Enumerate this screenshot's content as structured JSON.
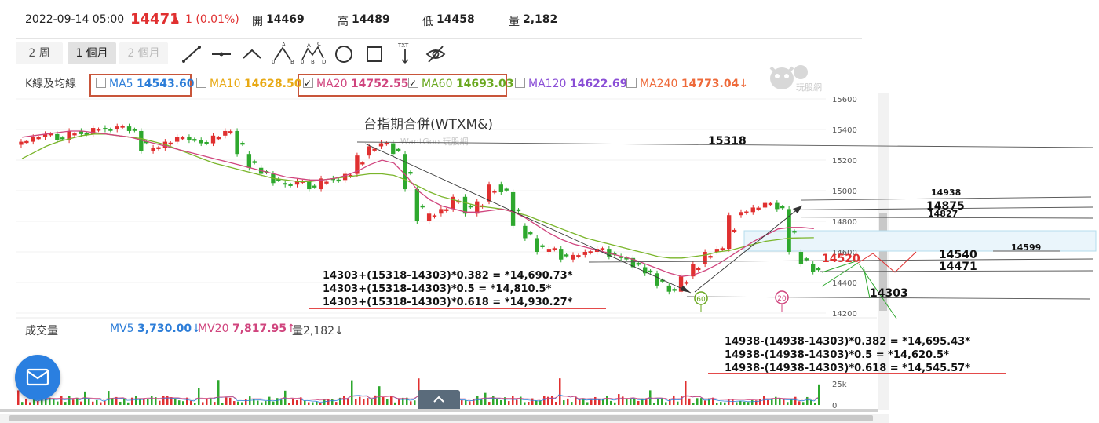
{
  "header": {
    "datetime": "2022-09-14 05:00",
    "price": "14471",
    "change": "1 (0.01%)",
    "open_label": "開",
    "open": "14469",
    "high_label": "高",
    "high": "14489",
    "low_label": "低",
    "low": "14458",
    "vol_label": "量",
    "vol": "2,182"
  },
  "periods": [
    {
      "label": "2 周",
      "state": "normal"
    },
    {
      "label": "1 個月",
      "state": "active"
    },
    {
      "label": "2 個月",
      "state": "disabled"
    }
  ],
  "tools": [
    "line-tool-icon",
    "horizontal-line-icon",
    "angle-line-icon",
    "abc-pattern-icon",
    "abcd-pattern-icon",
    "circle-tool-icon",
    "rectangle-tool-icon",
    "text-tool-icon",
    "hide-eye-icon"
  ],
  "tool_labels": {
    "abc": [
      "A",
      "0",
      "B"
    ],
    "abcd": [
      "C",
      "A",
      "D",
      "0",
      "B"
    ],
    "txt": "TXT"
  },
  "ma_bar": {
    "label": "K線及均線",
    "items": [
      {
        "name": "MA5",
        "value": "14543.60",
        "arrow": "↓",
        "checked": false,
        "color": "#2c7dd8"
      },
      {
        "name": "MA10",
        "value": "14628.50",
        "arrow": "↓",
        "checked": false,
        "color": "#e8a914"
      },
      {
        "name": "MA20",
        "value": "14752.55",
        "arrow": "↓",
        "checked": true,
        "color": "#d0457e"
      },
      {
        "name": "MA60",
        "value": "14693.03",
        "arrow": "↑",
        "checked": true,
        "color": "#6aa820"
      },
      {
        "name": "MA120",
        "value": "14622.69",
        "arrow": "↓",
        "checked": false,
        "color": "#8a4ed6"
      },
      {
        "name": "MA240",
        "value": "14773.04",
        "arrow": "↓",
        "checked": false,
        "color": "#ee6a3a"
      }
    ]
  },
  "watermark": {
    "brand": "玩股網",
    "subtitle": "WantGoo 玩股網"
  },
  "chart_data": {
    "type": "candlestick",
    "title": "台指期合併(WTXM&)",
    "ylim": [
      14200,
      15600
    ],
    "yticks": [
      14200,
      14400,
      14600,
      14800,
      15000,
      15200,
      15400,
      15600
    ],
    "close_approx": [
      15320,
      15350,
      15370,
      15330,
      15390,
      15370,
      15410,
      15400,
      15420,
      15390,
      15260,
      15280,
      15320,
      15350,
      15330,
      15310,
      15360,
      15390,
      15240,
      15150,
      15110,
      15050,
      15040,
      15060,
      15010,
      15080,
      15070,
      15110,
      15230,
      15290,
      15310,
      15240,
      15010,
      14800,
      14850,
      14880,
      14960,
      14850,
      14930,
      15040,
      14990,
      14770,
      14690,
      14600,
      14620,
      14550,
      14580,
      14600,
      14620,
      14570,
      14560,
      14500,
      14460,
      14380,
      14340,
      14440,
      14520,
      14600,
      14620,
      14840,
      14860,
      14890,
      14920,
      14880,
      14600,
      14520,
      14471
    ],
    "ma20_approx": [
      15350,
      15360,
      15370,
      15380,
      15390,
      15390,
      15380,
      15370,
      15360,
      15350,
      15330,
      15310,
      15290,
      15270,
      15250,
      15230,
      15210,
      15190,
      15170,
      15150,
      15130,
      15110,
      15090,
      15080,
      15070,
      15070,
      15080,
      15100,
      15130,
      15170,
      15200,
      15180,
      15100,
      15000,
      14940,
      14900,
      14880,
      14860,
      14860,
      14870,
      14880,
      14860,
      14820,
      14770,
      14720,
      14680,
      14650,
      14630,
      14610,
      14590,
      14570,
      14550,
      14520,
      14490,
      14460,
      14440,
      14450,
      14480,
      14520,
      14570,
      14620,
      14670,
      14710,
      14750,
      14760,
      14760,
      14752.55
    ],
    "ma60_approx": [
      15210,
      15250,
      15290,
      15320,
      15340,
      15360,
      15370,
      15370,
      15360,
      15350,
      15340,
      15320,
      15300,
      15270,
      15240,
      15210,
      15180,
      15160,
      15140,
      15120,
      15100,
      15080,
      15070,
      15060,
      15060,
      15070,
      15080,
      15090,
      15100,
      15110,
      15110,
      15100,
      15070,
      15030,
      14990,
      14960,
      14940,
      14920,
      14900,
      14890,
      14880,
      14860,
      14840,
      14810,
      14780,
      14750,
      14720,
      14690,
      14670,
      14650,
      14630,
      14610,
      14590,
      14570,
      14560,
      14560,
      14570,
      14580,
      14600,
      14610,
      14630,
      14650,
      14670,
      14680,
      14690,
      14692,
      14693.03
    ],
    "price_markers": [
      15318,
      14938,
      14875,
      14827,
      14599,
      14540,
      14471,
      14303,
      14520
    ],
    "circle_markers": [
      "60",
      "20"
    ],
    "retracement_up": [
      "14303+(15318-14303)*0.382 = *14,690.73*",
      "14303+(15318-14303)*0.5 = *14,810.5*",
      "14303+(15318-14303)*0.618 = *14,930.27*"
    ],
    "retracement_down": [
      "14938-(14938-14303)*0.382 = *14,695.43*",
      "14938-(14938-14303)*0.5 = *14,620.5*",
      "14938-(14938-14303)*0.618 = *14,545.57*"
    ],
    "volume": {
      "label": "成交量",
      "mv5_label": "MV5",
      "mv5": "3,730.00",
      "mv5_arrow": "↓",
      "mv20_label": "MV20",
      "mv20": "7,817.95",
      "mv20_arrow": "↑",
      "vol_label": "量",
      "vol": "2,182",
      "vol_arrow": "↓",
      "yticks": [
        "25k",
        "0"
      ]
    },
    "colors": {
      "up": "#e03030",
      "down": "#2ea82e",
      "ma20": "#d0457e",
      "ma60": "#7ab52a",
      "accent_red": "#e03030"
    }
  }
}
